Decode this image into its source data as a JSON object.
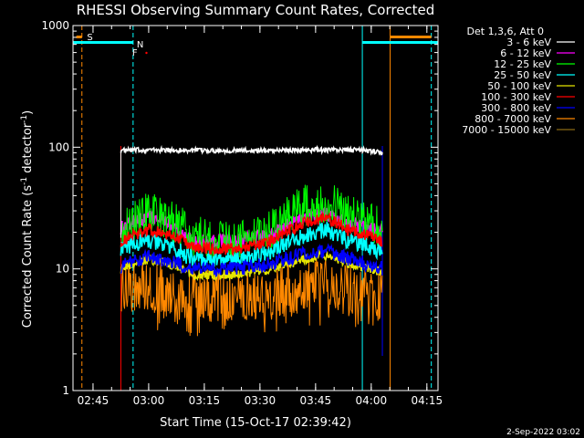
{
  "chart_data": {
    "type": "line",
    "title": "RHESSI Observing Summary Count Rates, Corrected",
    "xlabel": "Start Time (15-Oct-17 02:39:42)",
    "ylabel": "Corrected Count Rate (s",
    "ylabel_sup1": "-1",
    "ylabel_mid": " detector",
    "ylabel_sup2": "-1",
    "ylabel_end": ")",
    "x_range_min": [
      2.66,
      4.3
    ],
    "y_range": [
      1,
      1000
    ],
    "y_scale": "log",
    "x_ticks": [
      {
        "t": 2.75,
        "label": "02:45"
      },
      {
        "t": 3.0,
        "label": "03:00"
      },
      {
        "t": 3.25,
        "label": "03:15"
      },
      {
        "t": 3.5,
        "label": "03:30"
      },
      {
        "t": 3.75,
        "label": "03:45"
      },
      {
        "t": 4.0,
        "label": "04:00"
      },
      {
        "t": 4.25,
        "label": "04:15"
      }
    ],
    "y_ticks": [
      {
        "v": 1,
        "label": "1"
      },
      {
        "v": 10,
        "label": "10"
      },
      {
        "v": 100,
        "label": "100"
      },
      {
        "v": 1000,
        "label": "1000"
      }
    ],
    "legend_title": "Det 1,3,6, Att 0",
    "legend_position": "right",
    "series": [
      {
        "name": "3 - 6 keV",
        "color": "#ffffff",
        "profile": [
          [
            2.875,
            94
          ],
          [
            3.0,
            95
          ],
          [
            3.25,
            94
          ],
          [
            3.5,
            94
          ],
          [
            3.75,
            95
          ],
          [
            3.95,
            95
          ],
          [
            4.05,
            90
          ]
        ],
        "noise": 0.02
      },
      {
        "name": "6 - 12 keV",
        "color": "#ff00ff",
        "profile": [
          [
            2.875,
            22
          ],
          [
            3.0,
            27
          ],
          [
            3.1,
            23
          ],
          [
            3.2,
            17
          ],
          [
            3.4,
            17
          ],
          [
            3.55,
            19
          ],
          [
            3.7,
            27
          ],
          [
            3.8,
            28
          ],
          [
            3.9,
            23
          ],
          [
            4.05,
            20
          ]
        ],
        "noise": 0.06
      },
      {
        "name": "12 - 25 keV",
        "color": "#00ff00",
        "profile": [
          [
            2.875,
            21
          ],
          [
            3.0,
            29
          ],
          [
            3.1,
            25
          ],
          [
            3.2,
            18
          ],
          [
            3.4,
            17
          ],
          [
            3.55,
            20
          ],
          [
            3.7,
            33
          ],
          [
            3.8,
            36
          ],
          [
            3.9,
            28
          ],
          [
            4.05,
            22
          ]
        ],
        "noise": 0.18
      },
      {
        "name": "25 - 50 keV",
        "color": "#00ffff",
        "profile": [
          [
            2.875,
            15
          ],
          [
            3.0,
            17
          ],
          [
            3.1,
            15
          ],
          [
            3.2,
            12
          ],
          [
            3.4,
            12
          ],
          [
            3.55,
            14
          ],
          [
            3.7,
            19
          ],
          [
            3.8,
            21
          ],
          [
            3.9,
            17
          ],
          [
            4.05,
            14
          ]
        ],
        "noise": 0.07
      },
      {
        "name": "50 - 100 keV",
        "color": "#e6e600",
        "profile": [
          [
            2.875,
            10
          ],
          [
            3.0,
            12
          ],
          [
            3.1,
            11
          ],
          [
            3.2,
            9
          ],
          [
            3.4,
            9
          ],
          [
            3.55,
            10
          ],
          [
            3.7,
            12
          ],
          [
            3.8,
            13
          ],
          [
            3.9,
            11
          ],
          [
            4.05,
            9.5
          ]
        ],
        "noise": 0.04
      },
      {
        "name": "100 - 300 keV",
        "color": "#ff0000",
        "profile": [
          [
            2.875,
            17
          ],
          [
            3.0,
            21
          ],
          [
            3.1,
            19
          ],
          [
            3.2,
            15
          ],
          [
            3.4,
            14.5
          ],
          [
            3.55,
            17
          ],
          [
            3.7,
            24
          ],
          [
            3.8,
            26
          ],
          [
            3.9,
            21
          ],
          [
            4.05,
            17
          ]
        ],
        "noise": 0.05
      },
      {
        "name": "300 - 800 keV",
        "color": "#0000ff",
        "profile": [
          [
            2.875,
            10.5
          ],
          [
            3.0,
            12.5
          ],
          [
            3.1,
            11.5
          ],
          [
            3.2,
            10
          ],
          [
            3.4,
            10
          ],
          [
            3.55,
            11
          ],
          [
            3.7,
            13.5
          ],
          [
            3.8,
            14
          ],
          [
            3.9,
            12
          ],
          [
            4.05,
            10
          ]
        ],
        "noise": 0.06
      },
      {
        "name": "800 - 7000 keV",
        "color": "#ff8800",
        "profile": [
          [
            2.875,
            7.5
          ],
          [
            3.0,
            7
          ],
          [
            3.2,
            6
          ],
          [
            3.4,
            6
          ],
          [
            3.55,
            6.2
          ],
          [
            3.7,
            7.5
          ],
          [
            3.8,
            7.5
          ],
          [
            3.9,
            6.5
          ],
          [
            4.05,
            5.8
          ]
        ],
        "noise": 0.22
      },
      {
        "name": "7000 - 15000 keV",
        "color": "#8b6914",
        "profile": [],
        "noise": 0
      }
    ],
    "flag_labels": [
      {
        "text": "S",
        "color": "#ff8800"
      },
      {
        "text": "N",
        "color": "#00ffff"
      },
      {
        "text": "F",
        "color": "#ff0000"
      }
    ]
  },
  "footer": {
    "date": "2-Sep-2022 03:02"
  }
}
